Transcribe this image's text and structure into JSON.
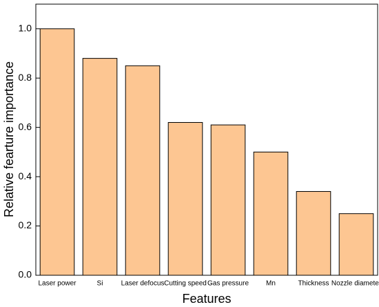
{
  "chart_data": {
    "type": "bar",
    "x_label": "Features",
    "y_label": "Relative fearture importance",
    "categories": [
      "Laser power",
      "Si",
      "Laser defocus",
      "Cutting speed",
      "Gas pressure",
      "Mn",
      "Thickness",
      "Nozzle diameter"
    ],
    "values": [
      1.0,
      0.88,
      0.85,
      0.62,
      0.61,
      0.5,
      0.34,
      0.25
    ],
    "color": "#fdc692",
    "ylim": [
      0,
      1.1
    ],
    "yticks": [
      {
        "value": 0,
        "label": "0.0"
      },
      {
        "value": 0.2,
        "label": "0.2"
      },
      {
        "value": 0.4,
        "label": "0.4"
      },
      {
        "value": 0.6,
        "label": "0.6"
      },
      {
        "value": 0.8,
        "label": "0.8"
      },
      {
        "value": 1.0,
        "label": "1.0"
      }
    ],
    "grid": false
  }
}
